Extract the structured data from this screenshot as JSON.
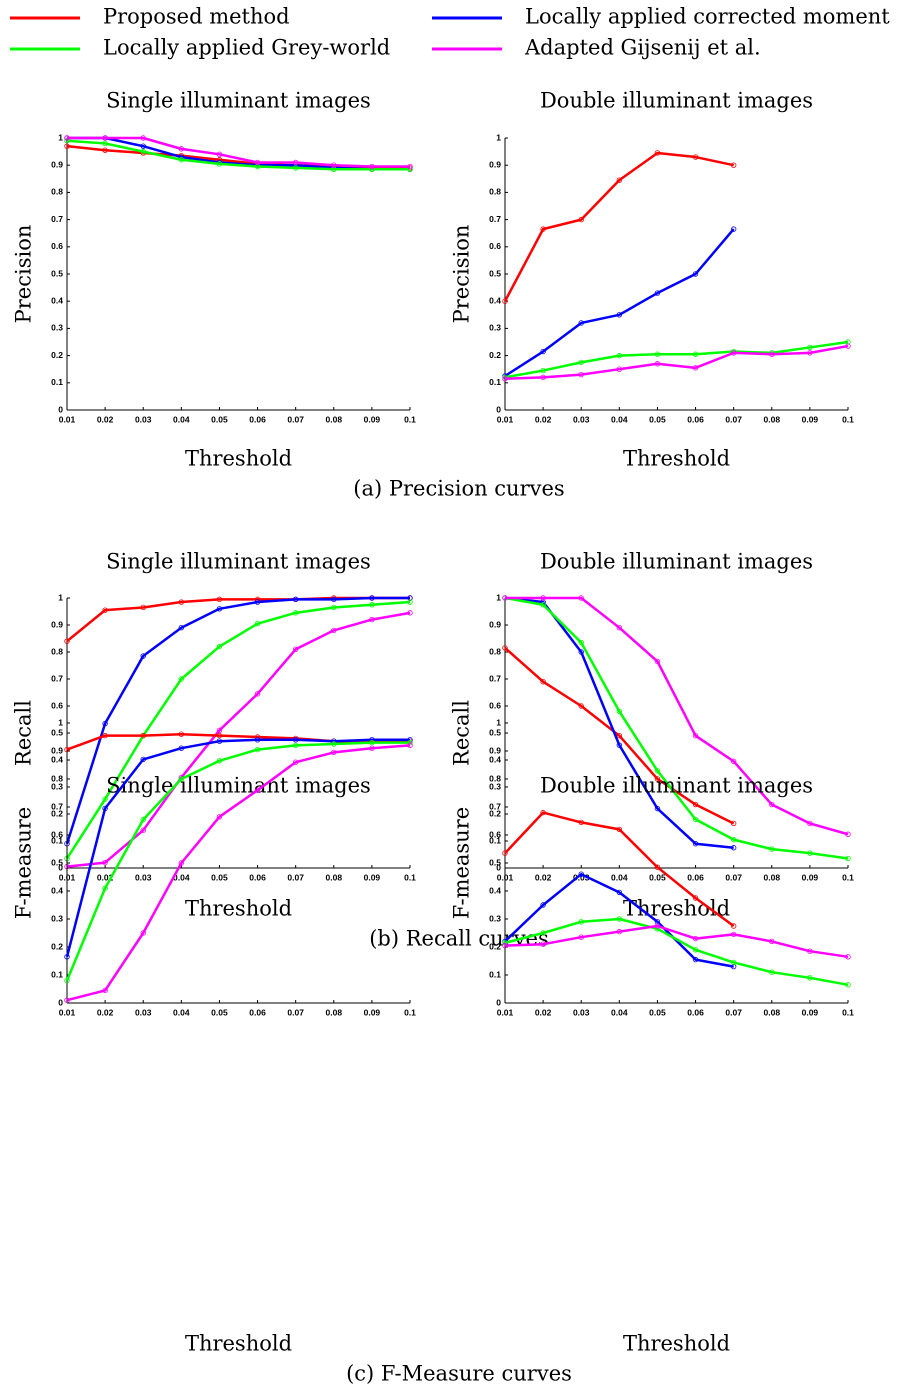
{
  "legend": [
    {
      "name": "Proposed method",
      "color": "#ff0000"
    },
    {
      "name": "Locally applied corrected moment",
      "color": "#0000ff"
    },
    {
      "name": "Locally applied Grey-world",
      "color": "#00ff00"
    },
    {
      "name": "Adapted Gijsenij et al.",
      "color": "#ff00ff"
    }
  ],
  "chart_data": [
    {
      "type": "line",
      "title": "Single illuminant images",
      "ylabel": "Precision",
      "xlabel": "Threshold",
      "caption": "(a) Precision curves",
      "x": [
        0.01,
        0.02,
        0.03,
        0.04,
        0.05,
        0.06,
        0.07,
        0.08,
        0.09,
        0.1
      ],
      "xlim": [
        0.01,
        0.1
      ],
      "xticks": [
        0.01,
        0.02,
        0.03,
        0.04,
        0.05,
        0.06,
        0.07,
        0.08,
        0.09,
        0.1
      ],
      "ylim": [
        0,
        1
      ],
      "yticks": [
        0,
        0.1,
        0.2,
        0.3,
        0.4,
        0.5,
        0.6,
        0.7,
        0.8,
        0.9,
        1
      ],
      "series": [
        {
          "values": [
            0.97,
            0.955,
            0.945,
            0.935,
            0.92,
            0.905,
            0.9,
            0.895,
            0.89,
            0.89
          ]
        },
        {
          "values": [
            1.0,
            1.0,
            0.97,
            0.93,
            0.91,
            0.9,
            0.9,
            0.89,
            0.885,
            0.885
          ]
        },
        {
          "values": [
            0.99,
            0.98,
            0.95,
            0.92,
            0.905,
            0.895,
            0.89,
            0.885,
            0.885,
            0.885
          ]
        },
        {
          "values": [
            1.0,
            1.0,
            1.0,
            0.96,
            0.94,
            0.91,
            0.91,
            0.9,
            0.895,
            0.895
          ]
        }
      ]
    },
    {
      "type": "line",
      "title": "Double illuminant images",
      "ylabel": "Precision",
      "xlabel": "Threshold",
      "x": [
        0.01,
        0.02,
        0.03,
        0.04,
        0.05,
        0.06,
        0.07,
        0.08,
        0.09,
        0.1
      ],
      "xlim": [
        0.01,
        0.1
      ],
      "xticks": [
        0.01,
        0.02,
        0.03,
        0.04,
        0.05,
        0.06,
        0.07,
        0.08,
        0.09,
        0.1
      ],
      "ylim": [
        0,
        1
      ],
      "yticks": [
        0,
        0.1,
        0.2,
        0.3,
        0.4,
        0.5,
        0.6,
        0.7,
        0.8,
        0.9,
        1
      ],
      "series": [
        {
          "values": [
            0.4,
            0.665,
            0.7,
            0.845,
            0.945,
            0.93,
            0.9,
            null,
            null,
            null
          ]
        },
        {
          "values": [
            0.125,
            0.215,
            0.32,
            0.35,
            0.43,
            0.5,
            0.665,
            null,
            null,
            null
          ]
        },
        {
          "values": [
            0.12,
            0.145,
            0.175,
            0.2,
            0.205,
            0.205,
            0.215,
            0.21,
            0.23,
            0.25
          ]
        },
        {
          "values": [
            0.115,
            0.12,
            0.13,
            0.15,
            0.17,
            0.155,
            0.21,
            0.205,
            0.21,
            0.235
          ]
        }
      ]
    },
    {
      "type": "line",
      "title": "Single illuminant images",
      "ylabel": "Recall",
      "xlabel": "Threshold",
      "caption": "(b) Recall curves",
      "x": [
        0.01,
        0.02,
        0.03,
        0.04,
        0.05,
        0.06,
        0.07,
        0.08,
        0.09,
        0.1
      ],
      "xlim": [
        0.01,
        0.1
      ],
      "xticks": [
        0.01,
        0.02,
        0.03,
        0.04,
        0.05,
        0.06,
        0.07,
        0.08,
        0.09,
        0.1
      ],
      "ylim": [
        0,
        1
      ],
      "yticks": [
        0,
        0.1,
        0.2,
        0.3,
        0.4,
        0.5,
        0.6,
        0.7,
        0.8,
        0.9,
        1
      ],
      "series": [
        {
          "values": [
            0.84,
            0.955,
            0.965,
            0.985,
            0.995,
            0.995,
            0.995,
            1,
            1,
            1
          ]
        },
        {
          "values": [
            0.09,
            0.535,
            0.785,
            0.89,
            0.96,
            0.985,
            0.995,
            0.995,
            1,
            1
          ]
        },
        {
          "values": [
            0.035,
            0.255,
            0.49,
            0.7,
            0.82,
            0.905,
            0.945,
            0.965,
            0.975,
            0.985
          ]
        },
        {
          "values": [
            0.005,
            0.02,
            0.14,
            0.335,
            0.51,
            0.645,
            0.81,
            0.88,
            0.92,
            0.945
          ]
        }
      ]
    },
    {
      "type": "line",
      "title": "Double illuminant images",
      "ylabel": "Recall",
      "xlabel": "Threshold",
      "x": [
        0.01,
        0.02,
        0.03,
        0.04,
        0.05,
        0.06,
        0.07,
        0.08,
        0.09,
        0.1
      ],
      "xlim": [
        0.01,
        0.1
      ],
      "xticks": [
        0.01,
        0.02,
        0.03,
        0.04,
        0.05,
        0.06,
        0.07,
        0.08,
        0.09,
        0.1
      ],
      "ylim": [
        0,
        1
      ],
      "yticks": [
        0,
        0.1,
        0.2,
        0.3,
        0.4,
        0.5,
        0.6,
        0.7,
        0.8,
        0.9,
        1
      ],
      "series": [
        {
          "values": [
            0.815,
            0.69,
            0.6,
            0.49,
            0.33,
            0.235,
            0.165,
            null,
            null,
            null
          ]
        },
        {
          "values": [
            1.0,
            0.985,
            0.8,
            0.455,
            0.22,
            0.09,
            0.075,
            null,
            null,
            null
          ]
        },
        {
          "values": [
            1.0,
            0.975,
            0.835,
            0.58,
            0.36,
            0.18,
            0.105,
            0.07,
            0.055,
            0.035
          ]
        },
        {
          "values": [
            1.0,
            1.0,
            1.0,
            0.89,
            0.765,
            0.49,
            0.395,
            0.235,
            0.165,
            0.125
          ]
        }
      ]
    },
    {
      "type": "line",
      "title": "Single illuminant images",
      "ylabel": "F-measure",
      "xlabel": "Threshold",
      "caption": "(c) F-Measure curves",
      "x": [
        0.01,
        0.02,
        0.03,
        0.04,
        0.05,
        0.06,
        0.07,
        0.08,
        0.09,
        0.1
      ],
      "xlim": [
        0.01,
        0.1
      ],
      "xticks": [
        0.01,
        0.02,
        0.03,
        0.04,
        0.05,
        0.06,
        0.07,
        0.08,
        0.09,
        0.1
      ],
      "ylim": [
        0,
        1
      ],
      "yticks": [
        0,
        0.1,
        0.2,
        0.3,
        0.4,
        0.5,
        0.6,
        0.7,
        0.8,
        0.9,
        1
      ],
      "series": [
        {
          "values": [
            0.905,
            0.955,
            0.955,
            0.96,
            0.955,
            0.95,
            0.945,
            0.935,
            0.935,
            0.935
          ]
        },
        {
          "values": [
            0.165,
            0.695,
            0.87,
            0.91,
            0.935,
            0.94,
            0.94,
            0.935,
            0.94,
            0.94
          ]
        },
        {
          "values": [
            0.08,
            0.41,
            0.655,
            0.8,
            0.865,
            0.905,
            0.92,
            0.925,
            0.93,
            0.93
          ]
        },
        {
          "values": [
            0.01,
            0.045,
            0.25,
            0.5,
            0.665,
            0.76,
            0.86,
            0.895,
            0.91,
            0.92
          ]
        }
      ]
    },
    {
      "type": "line",
      "title": "Double illuminant images",
      "ylabel": "F-measure",
      "xlabel": "Threshold",
      "x": [
        0.01,
        0.02,
        0.03,
        0.04,
        0.05,
        0.06,
        0.07,
        0.08,
        0.09,
        0.1
      ],
      "xlim": [
        0.01,
        0.1
      ],
      "xticks": [
        0.01,
        0.02,
        0.03,
        0.04,
        0.05,
        0.06,
        0.07,
        0.08,
        0.09,
        0.1
      ],
      "ylim": [
        0,
        1
      ],
      "yticks": [
        0,
        0.1,
        0.2,
        0.3,
        0.4,
        0.5,
        0.6,
        0.7,
        0.8,
        0.9,
        1
      ],
      "series": [
        {
          "values": [
            0.535,
            0.68,
            0.645,
            0.62,
            0.485,
            0.375,
            0.275,
            null,
            null,
            null
          ]
        },
        {
          "values": [
            0.22,
            0.35,
            0.46,
            0.395,
            0.29,
            0.155,
            0.13,
            null,
            null,
            null
          ]
        },
        {
          "values": [
            0.215,
            0.25,
            0.29,
            0.3,
            0.265,
            0.19,
            0.145,
            0.11,
            0.09,
            0.065
          ]
        },
        {
          "values": [
            0.205,
            0.21,
            0.235,
            0.255,
            0.275,
            0.23,
            0.245,
            0.22,
            0.185,
            0.165
          ]
        }
      ]
    }
  ]
}
